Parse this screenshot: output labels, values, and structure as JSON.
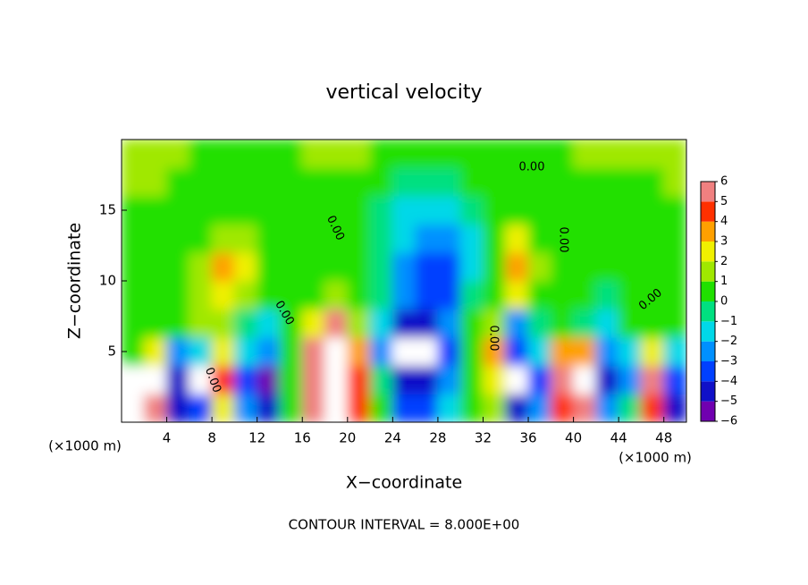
{
  "chart_data": {
    "type": "heatmap",
    "title": "vertical velocity",
    "xlabel": "X−coordinate",
    "ylabel": "Z−coordinate",
    "x_unit": "(×1000 m)",
    "y_unit": "(×1000 m)",
    "annotation": "CONTOUR INTERVAL = 8.000E+00",
    "contour_label": "0.00",
    "x": [
      1,
      3,
      5,
      7,
      9,
      11,
      13,
      15,
      17,
      19,
      21,
      23,
      25,
      27,
      29,
      31,
      33,
      35,
      37,
      39,
      41,
      43,
      45,
      47,
      49
    ],
    "y": [
      1,
      3,
      5,
      7,
      9,
      11,
      13,
      15,
      17,
      19
    ],
    "values": [
      [
        -7,
        5,
        -5,
        -4,
        2,
        -3,
        -5,
        0,
        5,
        8,
        4,
        0,
        -4,
        -4,
        -2,
        0,
        1,
        -5,
        -3,
        4,
        5,
        -3,
        -1,
        4,
        -5
      ],
      [
        -7,
        7,
        -5,
        -7,
        4,
        -4,
        -6,
        0,
        6,
        8,
        4,
        -1,
        -5,
        -5,
        -3,
        0,
        2,
        -7,
        -4,
        5,
        7,
        -5,
        -3,
        5,
        -4
      ],
      [
        0,
        2,
        -3,
        -2,
        2,
        -2,
        -3,
        0,
        5,
        8,
        3,
        -3,
        -7,
        -7,
        -4,
        0,
        3,
        -4,
        -2,
        3,
        3,
        -3,
        -2,
        2,
        -2
      ],
      [
        0,
        0,
        0,
        1,
        1,
        -1,
        -2,
        0,
        2,
        5,
        1,
        -2,
        -5,
        -5,
        -3,
        0,
        1,
        -3,
        -1,
        0,
        -1,
        -2,
        0,
        0,
        0
      ],
      [
        0,
        0,
        0,
        1,
        2,
        1,
        0,
        0,
        0,
        1,
        0,
        -1,
        -3,
        -4,
        -4,
        -1,
        0,
        2,
        0,
        0,
        0,
        -1,
        0,
        0,
        0
      ],
      [
        0,
        0,
        0,
        1,
        3,
        2,
        0,
        0,
        0,
        0,
        0,
        -1,
        -3,
        -4,
        -4,
        -2,
        0,
        3,
        1,
        0,
        0,
        0,
        0,
        0,
        0
      ],
      [
        0,
        0,
        0,
        0,
        1,
        1,
        0,
        0,
        0,
        0,
        0,
        -1,
        -2,
        -3,
        -3,
        -2,
        0,
        2,
        0,
        0,
        0,
        0,
        0,
        0,
        0
      ],
      [
        0,
        0,
        0,
        0,
        0,
        0,
        0,
        0,
        0,
        0,
        0,
        -1,
        -2,
        -2,
        -2,
        -1,
        0,
        0,
        0,
        0,
        0,
        0,
        0,
        0,
        0
      ],
      [
        1,
        1,
        0,
        0,
        0,
        0,
        0,
        0,
        0,
        0,
        0,
        0,
        -1,
        -1,
        -1,
        0,
        0,
        0,
        0,
        0,
        0,
        0,
        0,
        0,
        1
      ],
      [
        1,
        1,
        1,
        0,
        0,
        0,
        0,
        0,
        1,
        1,
        1,
        0,
        0,
        0,
        0,
        0,
        0,
        0,
        0,
        0,
        1,
        1,
        1,
        1,
        1
      ]
    ],
    "xlim": [
      0,
      50
    ],
    "ylim": [
      0,
      20
    ],
    "xticks": [
      4,
      8,
      12,
      16,
      20,
      24,
      28,
      32,
      36,
      40,
      44,
      48
    ],
    "yticks": [
      5,
      10,
      15
    ],
    "colorbar": {
      "ticks": [
        {
          "value": -6,
          "label": "−6"
        },
        {
          "value": -5,
          "label": "−5"
        },
        {
          "value": -4,
          "label": "−4"
        },
        {
          "value": -3,
          "label": "−3"
        },
        {
          "value": -2,
          "label": "−2"
        },
        {
          "value": -1,
          "label": "−1"
        },
        0,
        1,
        2,
        3,
        4,
        5,
        6
      ],
      "colors": [
        "#7000b0",
        "#1010c8",
        "#0040ff",
        "#0090ff",
        "#00d8e8",
        "#00e080",
        "#20e000",
        "#a0e800",
        "#f0f000",
        "#ffa000",
        "#ff3000",
        "#f08080"
      ]
    }
  }
}
